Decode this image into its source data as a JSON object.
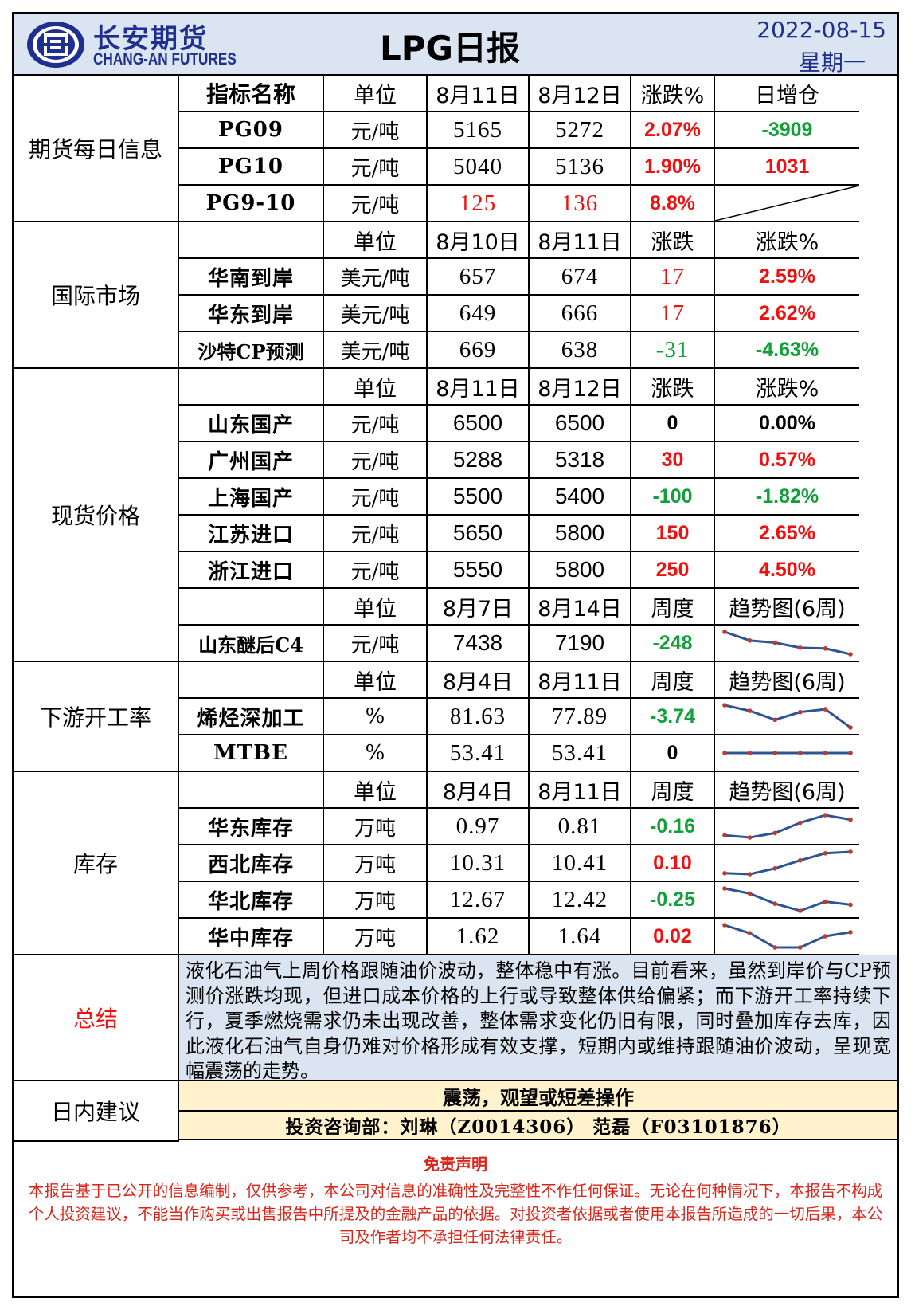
{
  "header": {
    "company_cn": "长安期货",
    "company_en": "CHANG-AN FUTURES",
    "title": "LPG日报",
    "date": "2022-08-15",
    "weekday": "星期一"
  },
  "colors": {
    "up": "#ee1111",
    "down": "#11a03a",
    "header_bg": "#dbe5f1",
    "advice_bg": "#fff2cc",
    "brand": "#1f2f8f"
  },
  "futures": {
    "section": "期货每日信息",
    "header": [
      "指标名称",
      "单位",
      "8月11日",
      "8月12日",
      "涨跌%",
      "日增仓"
    ],
    "rows": [
      {
        "name": "PG09",
        "unit": "元/吨",
        "v1": "5165",
        "v2": "5272",
        "chg": "2.07%",
        "oi": "-3909"
      },
      {
        "name": "PG10",
        "unit": "元/吨",
        "v1": "5040",
        "v2": "5136",
        "chg": "1.90%",
        "oi": "1031"
      },
      {
        "name": "PG9-10",
        "unit": "元/吨",
        "v1": "125",
        "v2": "136",
        "chg": "8.8%",
        "oi": ""
      }
    ]
  },
  "international": {
    "section": "国际市场",
    "header": [
      "",
      "单位",
      "8月10日",
      "8月11日",
      "涨跌",
      "涨跌%"
    ],
    "rows": [
      {
        "name": "华南到岸",
        "unit": "美元/吨",
        "v1": "657",
        "v2": "674",
        "chg": "17",
        "pct": "2.59%"
      },
      {
        "name": "华东到岸",
        "unit": "美元/吨",
        "v1": "649",
        "v2": "666",
        "chg": "17",
        "pct": "2.62%"
      },
      {
        "name": "沙特CP预测",
        "unit": "美元/吨",
        "v1": "669",
        "v2": "638",
        "chg": "-31",
        "pct": "-4.63%"
      }
    ]
  },
  "spot": {
    "section": "现货价格",
    "header": [
      "",
      "单位",
      "8月11日",
      "8月12日",
      "涨跌",
      "涨跌%"
    ],
    "rows": [
      {
        "name": "山东国产",
        "unit": "元/吨",
        "v1": "6500",
        "v2": "6500",
        "chg": "0",
        "pct": "0.00%"
      },
      {
        "name": "广州国产",
        "unit": "元/吨",
        "v1": "5288",
        "v2": "5318",
        "chg": "30",
        "pct": "0.57%"
      },
      {
        "name": "上海国产",
        "unit": "元/吨",
        "v1": "5500",
        "v2": "5400",
        "chg": "-100",
        "pct": "-1.82%"
      },
      {
        "name": "江苏进口",
        "unit": "元/吨",
        "v1": "5650",
        "v2": "5800",
        "chg": "150",
        "pct": "2.65%"
      },
      {
        "name": "浙江进口",
        "unit": "元/吨",
        "v1": "5550",
        "v2": "5800",
        "chg": "250",
        "pct": "4.50%"
      }
    ],
    "header2": [
      "",
      "单位",
      "8月7日",
      "8月14日",
      "周度",
      "趋势图(6周)"
    ],
    "c4": {
      "name": "山东醚后C4",
      "unit": "元/吨",
      "v1": "7438",
      "v2": "7190",
      "chg": "-248",
      "trend": [
        6.6,
        4.2,
        3.6,
        2.2,
        2.0,
        0.4
      ]
    }
  },
  "downstream": {
    "section": "下游开工率",
    "header": [
      "",
      "单位",
      "8月4日",
      "8月11日",
      "周度",
      "趋势图(6周)"
    ],
    "rows": [
      {
        "name": "烯烃深加工",
        "unit": "%",
        "v1": "81.63",
        "v2": "77.89",
        "chg": "-3.74",
        "trend": [
          6.0,
          4.6,
          2.4,
          4.3,
          5.0,
          0.5
        ]
      },
      {
        "name": "MTBE",
        "unit": "%",
        "v1": "53.41",
        "v2": "53.41",
        "chg": "0",
        "trend": [
          3,
          3,
          3,
          3,
          3,
          3
        ]
      }
    ]
  },
  "inventory": {
    "section": "库存",
    "header": [
      "",
      "单位",
      "8月4日",
      "8月11日",
      "周度",
      "趋势图(6周)"
    ],
    "rows": [
      {
        "name": "华东库存",
        "unit": "万吨",
        "v1": "0.97",
        "v2": "0.81",
        "chg": "-0.16",
        "trend": [
          1.0,
          0.5,
          1.5,
          3.8,
          5.5,
          4.5
        ]
      },
      {
        "name": "西北库存",
        "unit": "万吨",
        "v1": "10.31",
        "v2": "10.41",
        "chg": "0.10",
        "trend": [
          0.8,
          0.6,
          1.8,
          3.5,
          5.0,
          5.3
        ]
      },
      {
        "name": "华北库存",
        "unit": "万吨",
        "v1": "12.67",
        "v2": "12.42",
        "chg": "-0.25",
        "trend": [
          5.6,
          4.6,
          2.6,
          1.2,
          3.0,
          2.4
        ]
      },
      {
        "name": "华中库存",
        "unit": "万吨",
        "v1": "1.62",
        "v2": "1.64",
        "chg": "0.02",
        "trend": [
          5.2,
          3.6,
          0.8,
          0.8,
          3.0,
          3.8
        ]
      }
    ]
  },
  "summary": {
    "label": "总结",
    "text": "液化石油气上周价格跟随油价波动，整体稳中有涨。目前看来，虽然到岸价与CP预测价涨跌均现，但进口成本价格的上行或导致整体供给偏紧；而下游开工率持续下行，夏季燃烧需求仍未出现改善，整体需求变化仍旧有限，同时叠加库存去库，因此液化石油气自身仍难对价格形成有效支撑，短期内或维持跟随油价波动，呈现宽幅震荡的走势。"
  },
  "advice": {
    "label": "日内建议",
    "line1": "震荡，观望或短差操作",
    "line2": "投资咨询部：刘琳（Z0014306） 范磊（F03101876）"
  },
  "disclaimer": {
    "title": "免责声明",
    "text": "本报告基于已公开的信息编制，仅供参考，本公司对信息的准确性及完整性不作任何保证。无论在何种情况下，本报告不构成个人投资建议，不能当作购买或出售报告中所提及的金融产品的依据。对投资者依据或者使用本报告所造成的一切后果，本公司及作者均不承担任何法律责任。"
  }
}
